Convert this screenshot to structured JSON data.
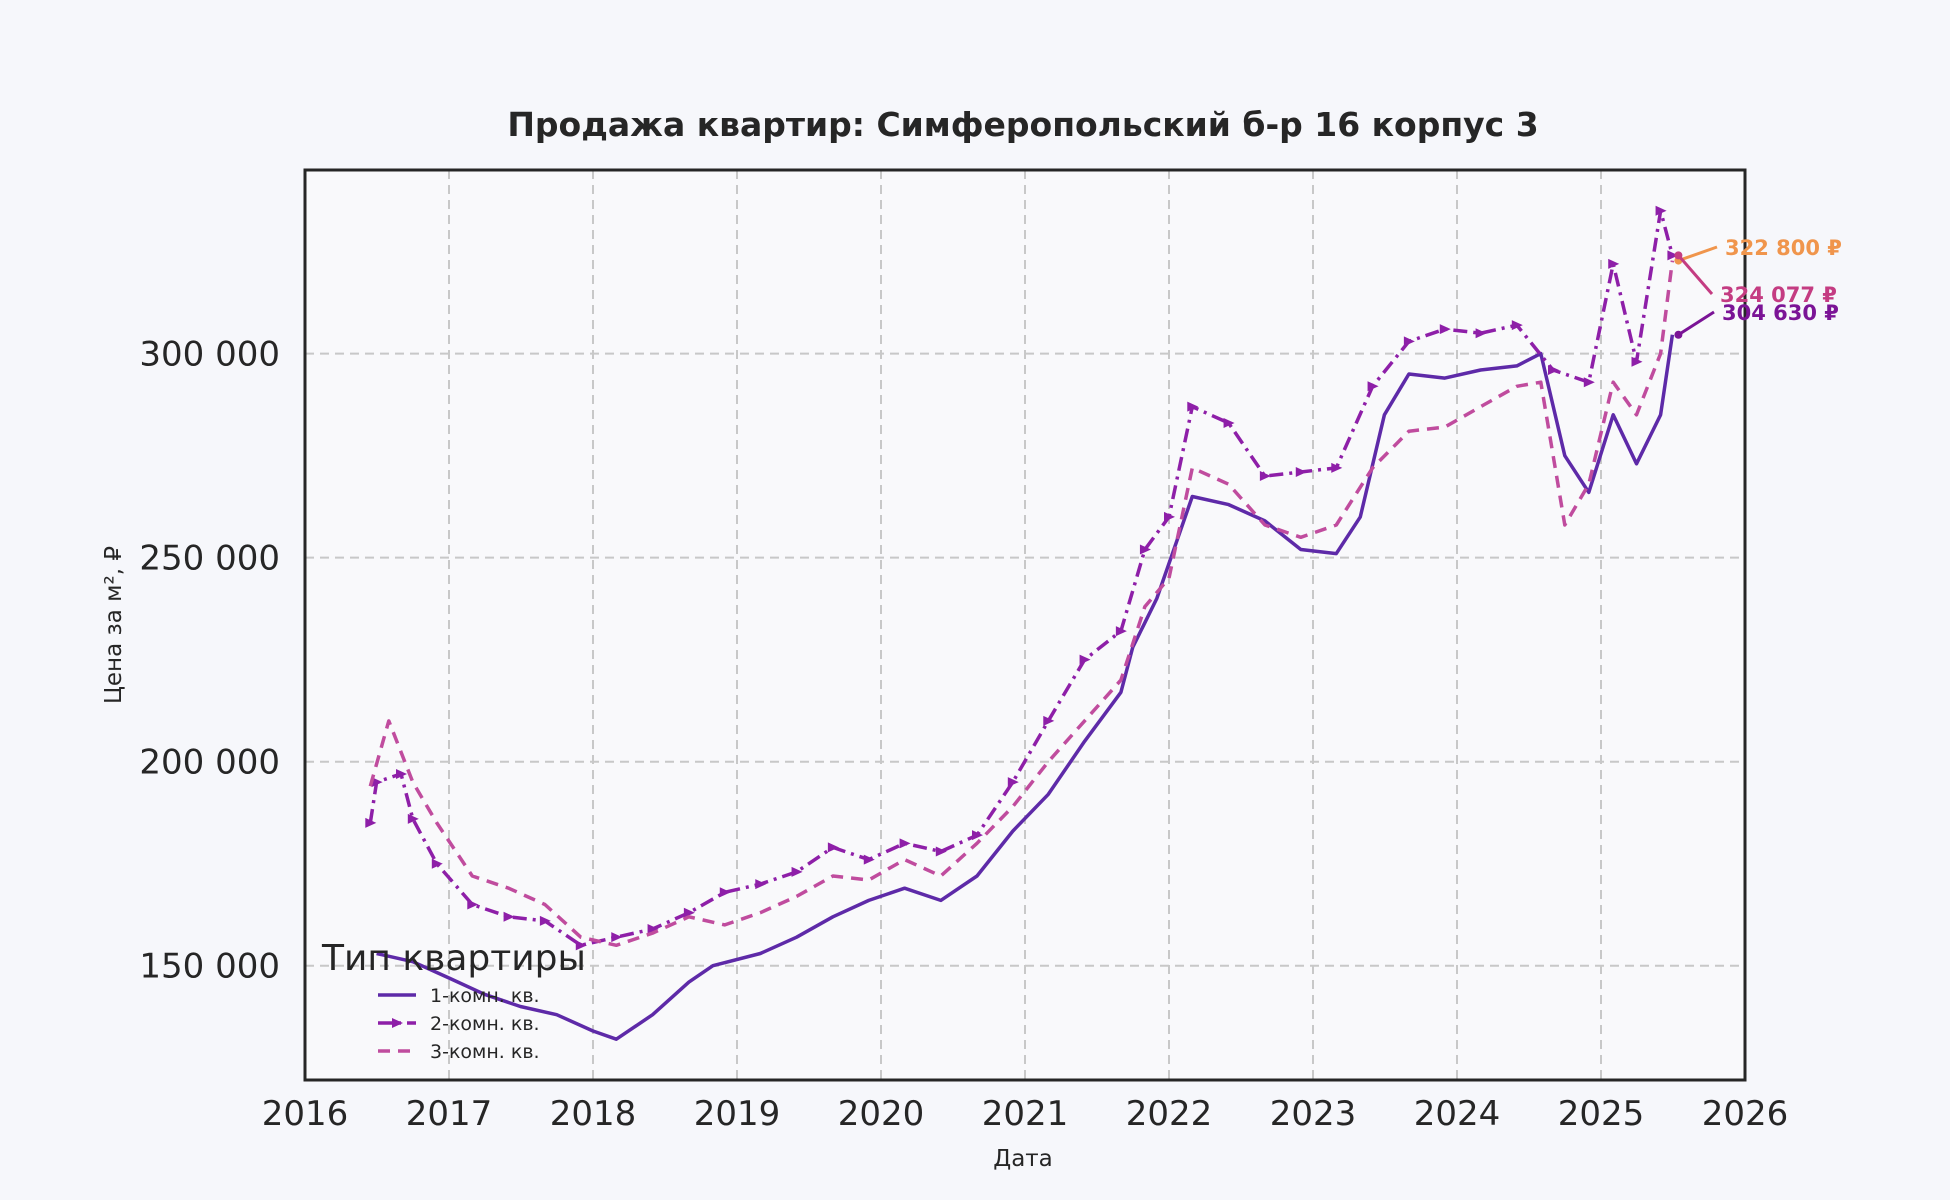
{
  "chart_data": {
    "type": "line",
    "title": "Продажа квартир: Симферопольский б-р 16 корпус 3",
    "xlabel": "Дата",
    "ylabel": "Цена за м², ₽",
    "xlim": [
      "2016-01-01",
      "2026-01-01"
    ],
    "ylim": [
      122000,
      345000
    ],
    "x_ticks": [
      "2016",
      "2017",
      "2018",
      "2019",
      "2020",
      "2021",
      "2022",
      "2023",
      "2024",
      "2025",
      "2026"
    ],
    "y_ticks": [
      150000,
      200000,
      250000,
      300000
    ],
    "y_tick_labels": [
      "150 000",
      "200 000",
      "250 000",
      "300 000"
    ],
    "grid": true,
    "legend": {
      "title": "Тип квартиры",
      "placement": "lower-left"
    },
    "series": [
      {
        "name": "1-комн. кв.",
        "color": "#5e2aa8",
        "style": "solid",
        "points": [
          [
            "2016-07-01",
            153000
          ],
          [
            "2016-10-01",
            151000
          ],
          [
            "2017-01-01",
            147000
          ],
          [
            "2017-04-01",
            143000
          ],
          [
            "2017-07-01",
            140000
          ],
          [
            "2017-10-01",
            138000
          ],
          [
            "2018-01-01",
            134000
          ],
          [
            "2018-03-01",
            132000
          ],
          [
            "2018-06-01",
            138000
          ],
          [
            "2018-09-01",
            146000
          ],
          [
            "2018-11-01",
            150000
          ],
          [
            "2019-03-01",
            153000
          ],
          [
            "2019-06-01",
            157000
          ],
          [
            "2019-09-01",
            162000
          ],
          [
            "2019-12-01",
            166000
          ],
          [
            "2020-03-01",
            169000
          ],
          [
            "2020-06-01",
            166000
          ],
          [
            "2020-09-01",
            172000
          ],
          [
            "2020-12-01",
            183000
          ],
          [
            "2021-03-01",
            192000
          ],
          [
            "2021-06-01",
            205000
          ],
          [
            "2021-09-01",
            217000
          ],
          [
            "2021-10-01",
            228000
          ],
          [
            "2021-12-01",
            240000
          ],
          [
            "2022-03-01",
            265000
          ],
          [
            "2022-06-01",
            263000
          ],
          [
            "2022-09-01",
            259000
          ],
          [
            "2022-12-01",
            252000
          ],
          [
            "2023-03-01",
            251000
          ],
          [
            "2023-05-01",
            260000
          ],
          [
            "2023-07-01",
            285000
          ],
          [
            "2023-09-01",
            295000
          ],
          [
            "2023-12-01",
            294000
          ],
          [
            "2024-03-01",
            296000
          ],
          [
            "2024-06-01",
            297000
          ],
          [
            "2024-08-01",
            300000
          ],
          [
            "2024-10-01",
            275000
          ],
          [
            "2024-12-01",
            266000
          ],
          [
            "2025-02-01",
            285000
          ],
          [
            "2025-04-01",
            273000
          ],
          [
            "2025-06-01",
            285000
          ],
          [
            "2025-07-01",
            304630
          ]
        ]
      },
      {
        "name": "2-комн. кв.",
        "color": "#8e1fa8",
        "style": "dashdot-markers",
        "points": [
          [
            "2016-06-15",
            185000
          ],
          [
            "2016-07-01",
            195000
          ],
          [
            "2016-09-01",
            197000
          ],
          [
            "2016-10-01",
            186000
          ],
          [
            "2016-12-01",
            175000
          ],
          [
            "2017-03-01",
            165000
          ],
          [
            "2017-06-01",
            162000
          ],
          [
            "2017-09-01",
            161000
          ],
          [
            "2017-12-01",
            155000
          ],
          [
            "2018-03-01",
            157000
          ],
          [
            "2018-06-01",
            159000
          ],
          [
            "2018-09-01",
            163000
          ],
          [
            "2018-12-01",
            168000
          ],
          [
            "2019-03-01",
            170000
          ],
          [
            "2019-06-01",
            173000
          ],
          [
            "2019-09-01",
            179000
          ],
          [
            "2019-12-01",
            176000
          ],
          [
            "2020-03-01",
            180000
          ],
          [
            "2020-06-01",
            178000
          ],
          [
            "2020-09-01",
            182000
          ],
          [
            "2020-12-01",
            195000
          ],
          [
            "2021-03-01",
            210000
          ],
          [
            "2021-06-01",
            225000
          ],
          [
            "2021-09-01",
            232000
          ],
          [
            "2021-11-01",
            252000
          ],
          [
            "2022-01-01",
            260000
          ],
          [
            "2022-03-01",
            287000
          ],
          [
            "2022-06-01",
            283000
          ],
          [
            "2022-09-01",
            270000
          ],
          [
            "2022-12-01",
            271000
          ],
          [
            "2023-03-01",
            272000
          ],
          [
            "2023-06-01",
            292000
          ],
          [
            "2023-09-01",
            303000
          ],
          [
            "2023-12-01",
            306000
          ],
          [
            "2024-03-01",
            305000
          ],
          [
            "2024-06-01",
            307000
          ],
          [
            "2024-09-01",
            296000
          ],
          [
            "2024-12-01",
            293000
          ],
          [
            "2025-02-01",
            322000
          ],
          [
            "2025-04-01",
            298000
          ],
          [
            "2025-06-01",
            335000
          ],
          [
            "2025-07-01",
            324077
          ]
        ]
      },
      {
        "name": "3-комн. кв.",
        "color": "#c04c9e",
        "style": "dashed",
        "points": [
          [
            "2016-06-15",
            194000
          ],
          [
            "2016-08-01",
            210000
          ],
          [
            "2016-10-01",
            195000
          ],
          [
            "2016-12-01",
            185000
          ],
          [
            "2017-03-01",
            172000
          ],
          [
            "2017-06-01",
            169000
          ],
          [
            "2017-09-01",
            165000
          ],
          [
            "2017-12-01",
            157000
          ],
          [
            "2018-03-01",
            155000
          ],
          [
            "2018-06-01",
            158000
          ],
          [
            "2018-09-01",
            162000
          ],
          [
            "2018-12-01",
            160000
          ],
          [
            "2019-03-01",
            163000
          ],
          [
            "2019-06-01",
            167000
          ],
          [
            "2019-09-01",
            172000
          ],
          [
            "2019-12-01",
            171000
          ],
          [
            "2020-03-01",
            176000
          ],
          [
            "2020-06-01",
            172000
          ],
          [
            "2020-09-01",
            180000
          ],
          [
            "2020-12-01",
            189000
          ],
          [
            "2021-03-01",
            200000
          ],
          [
            "2021-06-01",
            210000
          ],
          [
            "2021-09-01",
            220000
          ],
          [
            "2021-11-01",
            238000
          ],
          [
            "2022-01-01",
            245000
          ],
          [
            "2022-03-01",
            272000
          ],
          [
            "2022-06-01",
            268000
          ],
          [
            "2022-09-01",
            258000
          ],
          [
            "2022-12-01",
            255000
          ],
          [
            "2023-03-01",
            258000
          ],
          [
            "2023-06-01",
            272000
          ],
          [
            "2023-09-01",
            281000
          ],
          [
            "2023-12-01",
            282000
          ],
          [
            "2024-03-01",
            287000
          ],
          [
            "2024-06-01",
            292000
          ],
          [
            "2024-08-01",
            293000
          ],
          [
            "2024-10-01",
            258000
          ],
          [
            "2024-12-01",
            268000
          ],
          [
            "2025-02-01",
            293000
          ],
          [
            "2025-04-01",
            285000
          ],
          [
            "2025-06-01",
            300000
          ],
          [
            "2025-07-01",
            322800
          ]
        ]
      }
    ],
    "annotations": [
      {
        "text": "322 800 ₽",
        "color": "#f0954c",
        "series": "3-комн. кв."
      },
      {
        "text": "324 077 ₽",
        "color": "#c43c82",
        "series": "2-комн. кв."
      },
      {
        "text": "304 630 ₽",
        "color": "#7b1496",
        "series": "1-комн. кв."
      }
    ]
  }
}
